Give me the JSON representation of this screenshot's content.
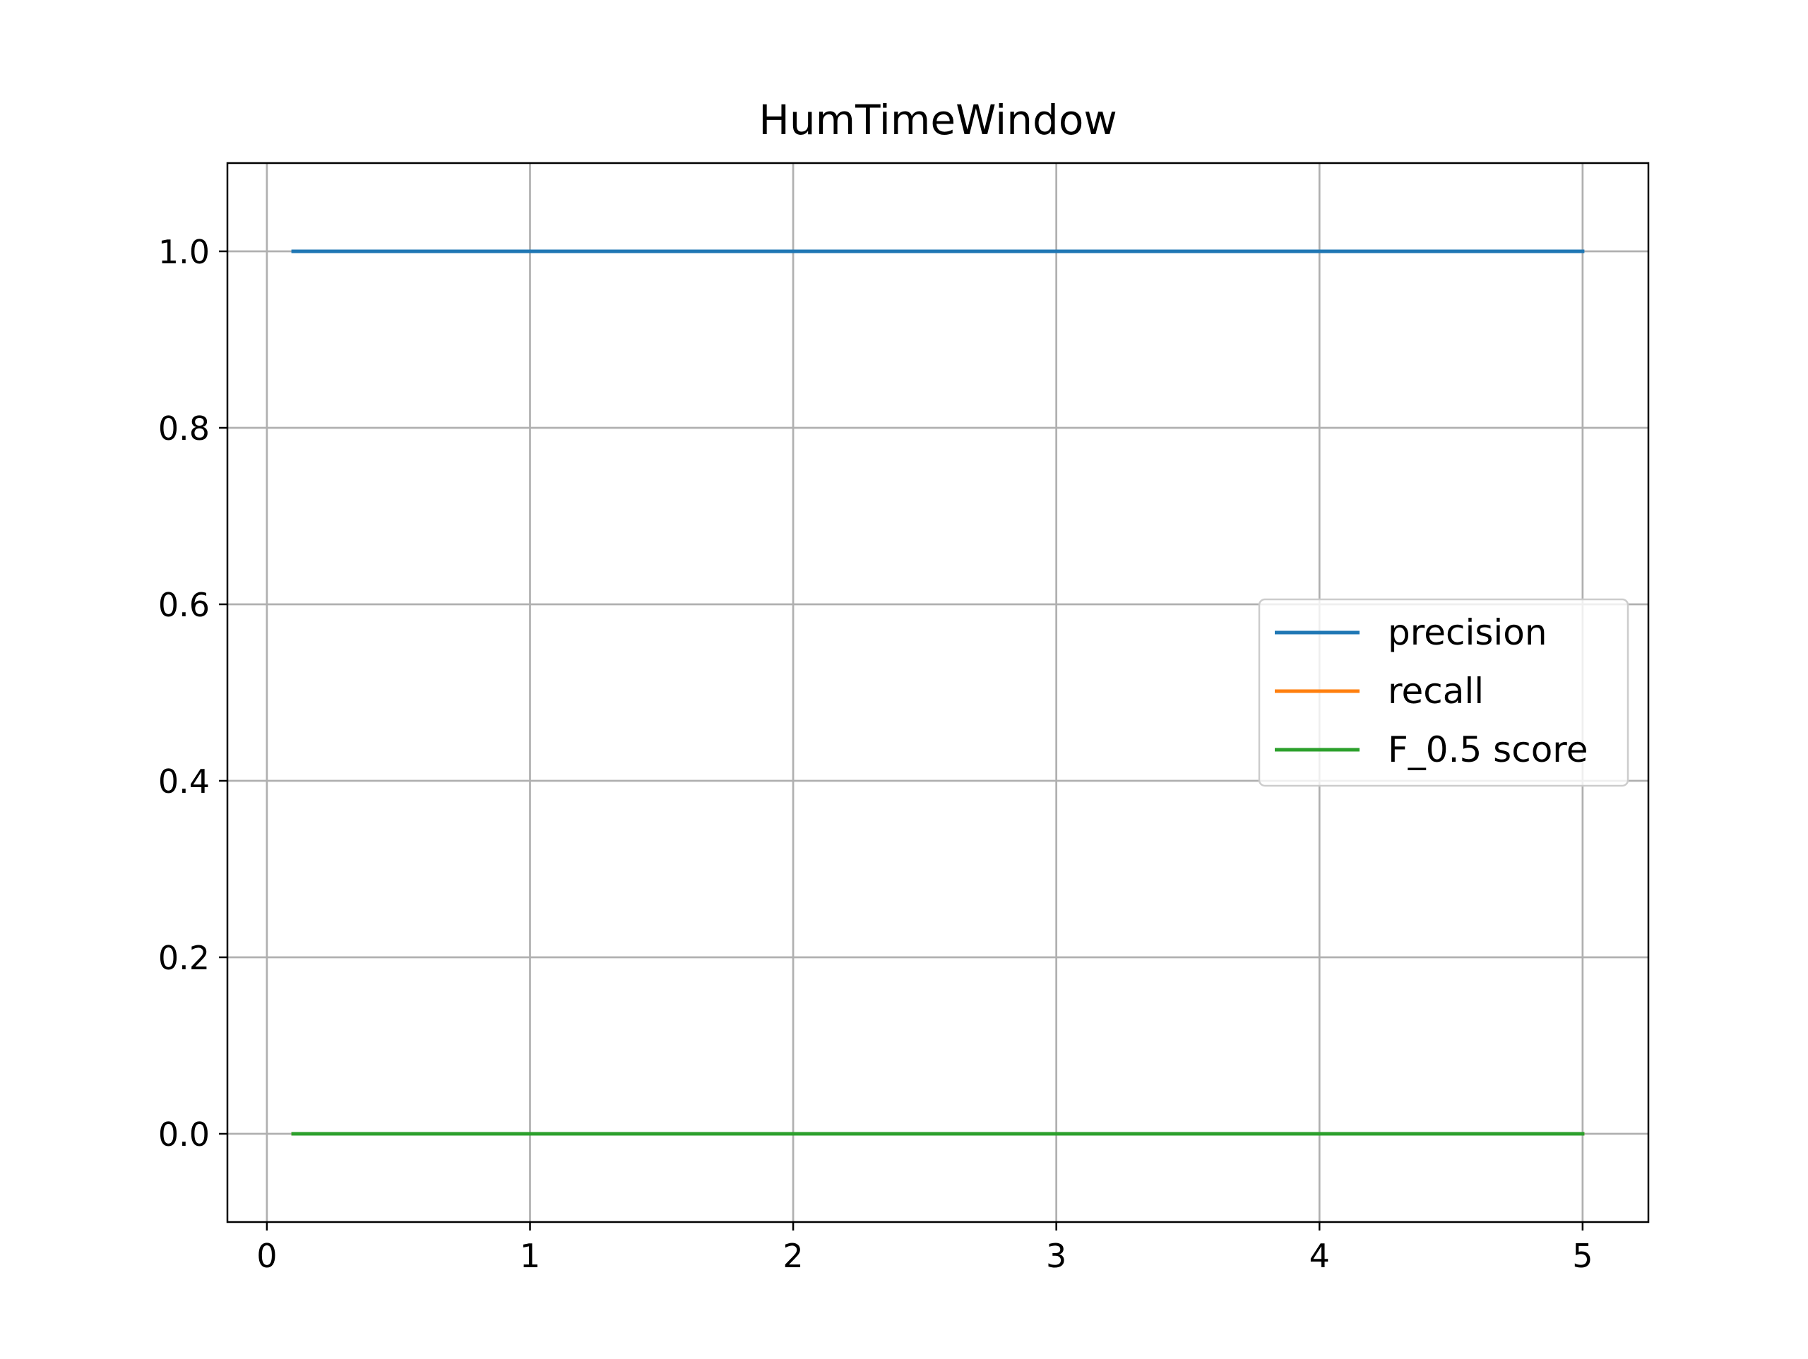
{
  "chart_data": {
    "type": "line",
    "title": "HumTimeWindow",
    "xlabel": "",
    "ylabel": "",
    "xlim": [
      -0.15,
      5.25
    ],
    "ylim": [
      -0.1,
      1.1
    ],
    "xticks": [
      0,
      1,
      2,
      3,
      4,
      5
    ],
    "xtick_labels": [
      "0",
      "1",
      "2",
      "3",
      "4",
      "5"
    ],
    "yticks": [
      0.0,
      0.2,
      0.4,
      0.6,
      0.8,
      1.0
    ],
    "ytick_labels": [
      "0.0",
      "0.2",
      "0.4",
      "0.6",
      "0.8",
      "1.0"
    ],
    "grid": true,
    "legend": {
      "placement": "center-right"
    },
    "x": [
      0.1,
      0.5,
      1,
      1.5,
      2,
      2.5,
      3,
      3.5,
      4,
      4.5,
      5
    ],
    "series": [
      {
        "name": "precision",
        "color": "#1f77b4",
        "values": [
          1,
          1,
          1,
          1,
          1,
          1,
          1,
          1,
          1,
          1,
          1
        ]
      },
      {
        "name": "recall",
        "color": "#ff7f0e",
        "values": [
          0,
          0,
          0,
          0,
          0,
          0,
          0,
          0,
          0,
          0,
          0
        ]
      },
      {
        "name": "F_0.5 score",
        "color": "#2ca02c",
        "values": [
          0,
          0,
          0,
          0,
          0,
          0,
          0,
          0,
          0,
          0,
          0
        ]
      }
    ]
  }
}
